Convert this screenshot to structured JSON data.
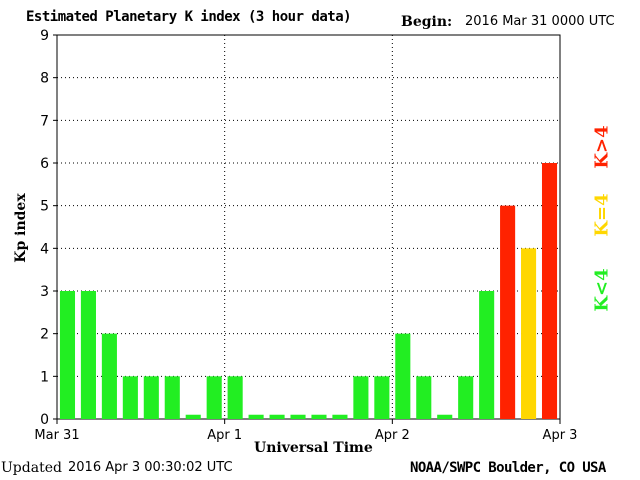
{
  "header": {
    "title": "Estimated Planetary K index (3 hour data)",
    "begin_label": "Begin:",
    "begin_value": "2016 Mar 31 0000 UTC"
  },
  "footer": {
    "updated_label": "Updated",
    "updated_value": "2016 Apr  3 00:30:02 UTC",
    "source": "NOAA/SWPC Boulder, CO USA"
  },
  "legend": {
    "high": "K>4",
    "mid": "K=4",
    "low": "K<4"
  },
  "colors": {
    "low": "#22ee22",
    "mid": "#ffd700",
    "high": "#ff2200"
  },
  "chart_data": {
    "type": "bar",
    "title": "Estimated Planetary K index (3 hour data)",
    "xlabel": "Universal Time",
    "ylabel": "Kp index",
    "ylim": [
      0,
      9
    ],
    "yticks": [
      "0",
      "1",
      "2",
      "3",
      "4",
      "5",
      "6",
      "7",
      "8",
      "9"
    ],
    "xticks": [
      "Mar 31",
      "Apr 1",
      "Apr 2",
      "Apr 3"
    ],
    "grid": true,
    "values": [
      3,
      3,
      2,
      1,
      1,
      1,
      0.1,
      1,
      1,
      0.1,
      0.1,
      0.1,
      0.1,
      0.1,
      1,
      1,
      2,
      1,
      0.1,
      1,
      3,
      5,
      4,
      6
    ]
  }
}
